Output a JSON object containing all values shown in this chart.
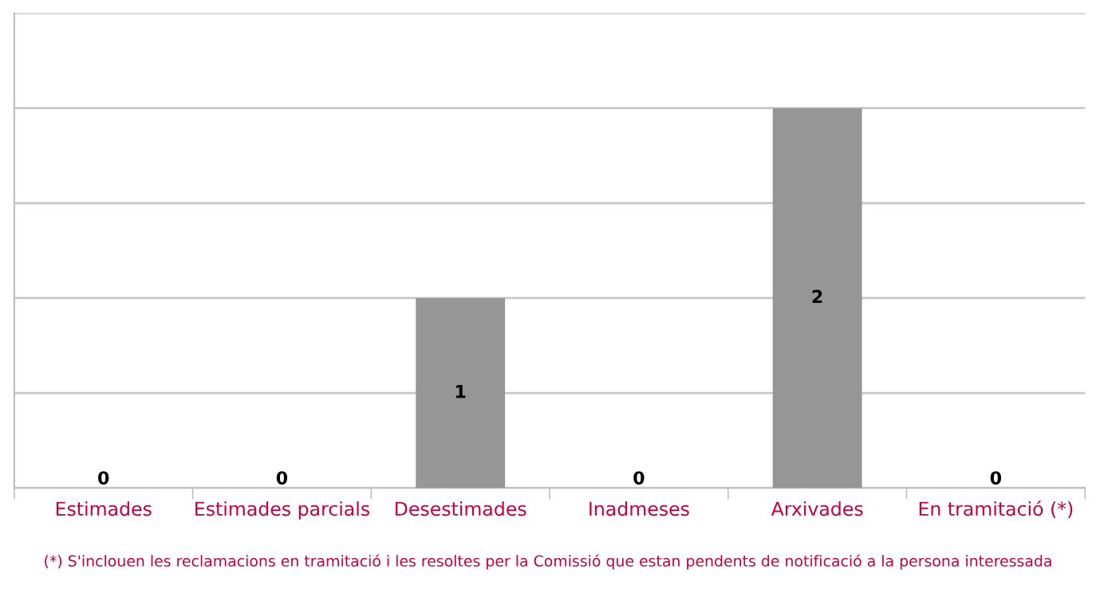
{
  "chart_data": {
    "type": "bar",
    "categories": [
      "Estimades",
      "Estimades parcials",
      "Desestimades",
      "Inadmeses",
      "Arxivades",
      "En tramitació (*)"
    ],
    "values": [
      0,
      0,
      1,
      0,
      2,
      0
    ],
    "color": "#969696",
    "ylim": [
      0,
      2.5
    ],
    "yticks": [
      {
        "value": 0,
        "label": null
      },
      {
        "value": 0.5,
        "label": null
      },
      {
        "value": 1,
        "label": null
      },
      {
        "value": 1.5,
        "label": null
      },
      {
        "value": 2,
        "label": null
      },
      {
        "value": 2.5,
        "label": null
      }
    ],
    "tick_labels": "x",
    "grid": "y",
    "data_labels": true,
    "annotations": [
      "(*) S'inclouen les reclamacions en tramitació i les resoltes per la Comissió que estan pendents de notificació a la persona interessada"
    ]
  }
}
